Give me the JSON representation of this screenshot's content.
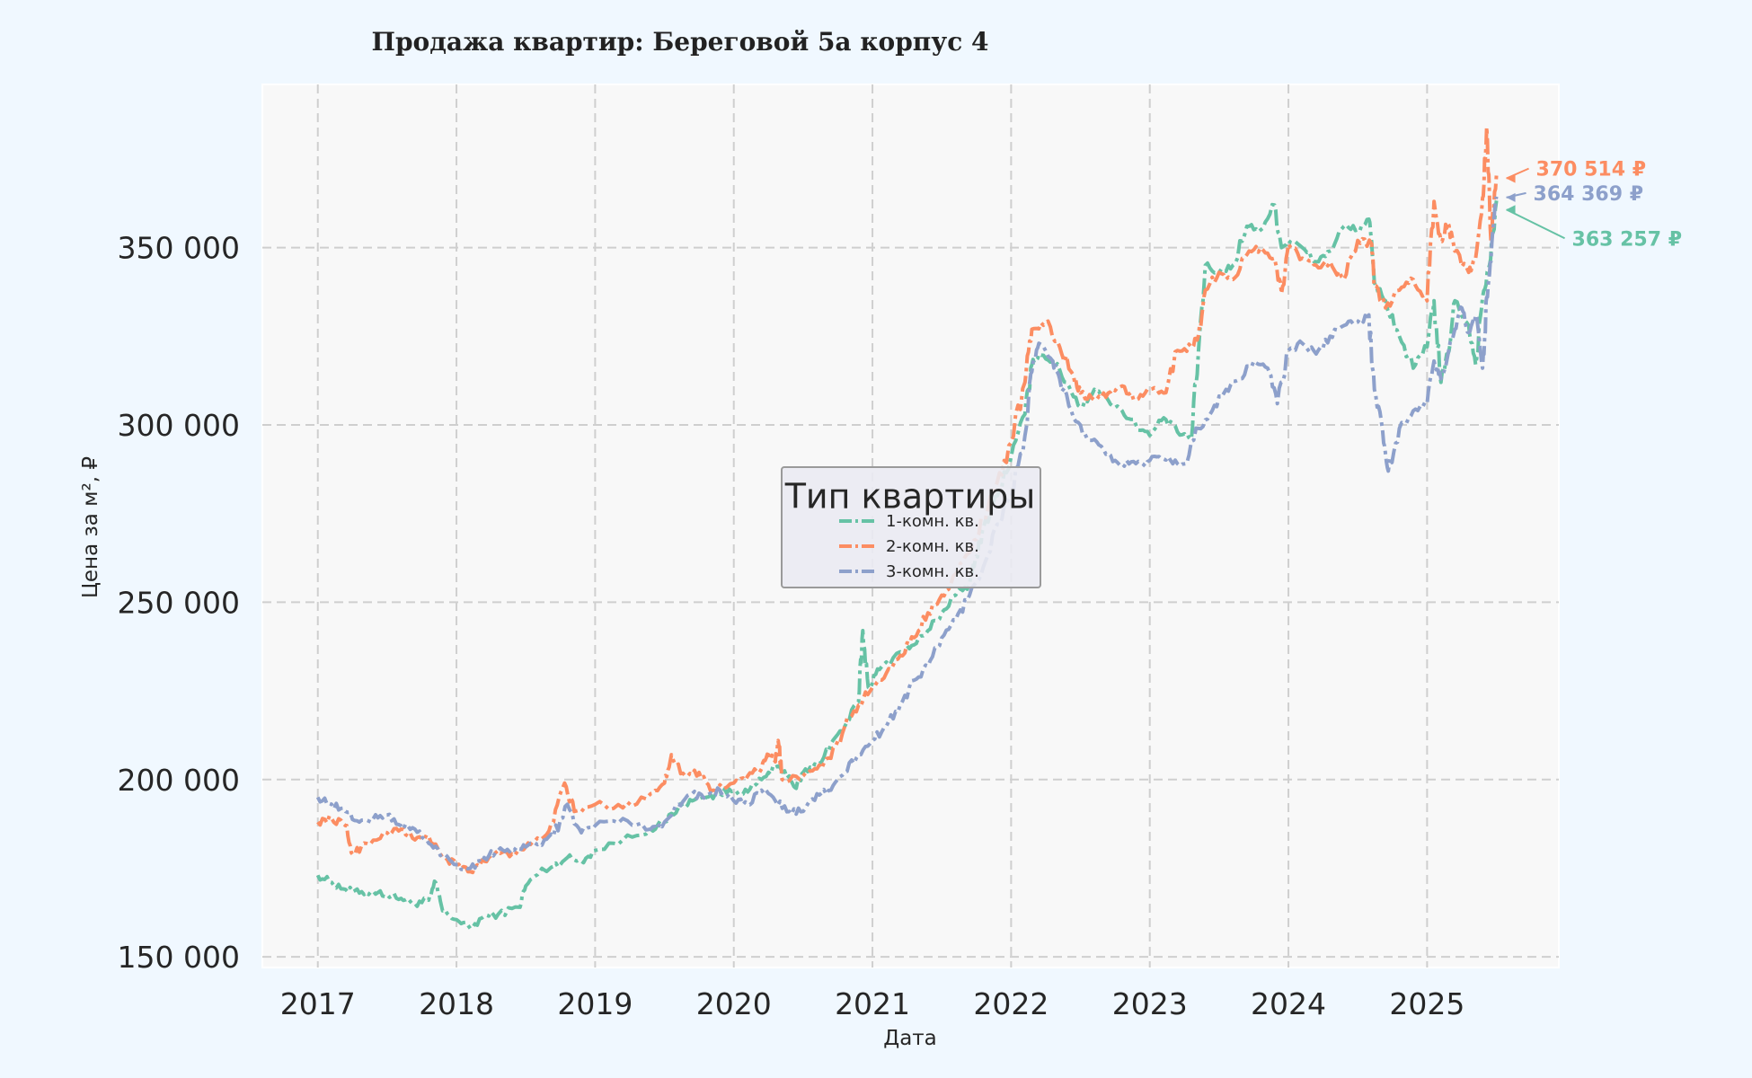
{
  "chart_data": {
    "type": "line",
    "title": "Продажа квартир: Береговой 5а корпус 4",
    "xlabel": "Дата",
    "ylabel": "Цена за м², ₽",
    "xlim": [
      2016.6,
      2025.95
    ],
    "ylim": [
      147000,
      396000
    ],
    "x_ticks": [
      2017,
      2018,
      2019,
      2020,
      2021,
      2022,
      2023,
      2024,
      2025
    ],
    "x_tick_labels": [
      "2017",
      "2018",
      "2019",
      "2020",
      "2021",
      "2022",
      "2023",
      "2024",
      "2025"
    ],
    "y_ticks": [
      150000,
      200000,
      250000,
      300000,
      350000
    ],
    "y_tick_labels": [
      "150 000",
      "200 000",
      "250 000",
      "300 000",
      "350 000"
    ],
    "grid": true,
    "legend": {
      "title": "Тип квартиры",
      "position": "center"
    },
    "series": [
      {
        "name": "1-комн. кв.",
        "color": "#66c2a5",
        "end_label": "363 257 ₽",
        "points": [
          [
            2017.0,
            173000
          ],
          [
            2017.1,
            171000
          ],
          [
            2017.2,
            169000
          ],
          [
            2017.3,
            168000
          ],
          [
            2017.4,
            168500
          ],
          [
            2017.5,
            167500
          ],
          [
            2017.6,
            166500
          ],
          [
            2017.7,
            165000
          ],
          [
            2017.8,
            166000
          ],
          [
            2017.85,
            171000
          ],
          [
            2017.9,
            163000
          ],
          [
            2018.0,
            160500
          ],
          [
            2018.1,
            158000
          ],
          [
            2018.2,
            161500
          ],
          [
            2018.3,
            162000
          ],
          [
            2018.45,
            164000
          ],
          [
            2018.5,
            170000
          ],
          [
            2018.6,
            174000
          ],
          [
            2018.7,
            175500
          ],
          [
            2018.8,
            178000
          ],
          [
            2018.9,
            177000
          ],
          [
            2019.0,
            180000
          ],
          [
            2019.2,
            183000
          ],
          [
            2019.4,
            186000
          ],
          [
            2019.5,
            188000
          ],
          [
            2019.6,
            192000
          ],
          [
            2019.7,
            194000
          ],
          [
            2019.8,
            195000
          ],
          [
            2019.9,
            196000
          ],
          [
            2020.0,
            197000
          ],
          [
            2020.1,
            196500
          ],
          [
            2020.2,
            200000
          ],
          [
            2020.3,
            203500
          ],
          [
            2020.4,
            201000
          ],
          [
            2020.45,
            197500
          ],
          [
            2020.5,
            202000
          ],
          [
            2020.6,
            204000
          ],
          [
            2020.7,
            210000
          ],
          [
            2020.8,
            215000
          ],
          [
            2020.9,
            222000
          ],
          [
            2020.93,
            242000
          ],
          [
            2020.97,
            226000
          ],
          [
            2021.05,
            231000
          ],
          [
            2021.2,
            236000
          ],
          [
            2021.3,
            238000
          ],
          [
            2021.4,
            242000
          ],
          [
            2021.5,
            247000
          ],
          [
            2021.6,
            252000
          ],
          [
            2021.7,
            255000
          ],
          [
            2021.75,
            263000
          ],
          [
            2021.8,
            271000
          ],
          [
            2021.9,
            280000
          ],
          [
            2022.0,
            291000
          ],
          [
            2022.1,
            303000
          ],
          [
            2022.15,
            317000
          ],
          [
            2022.2,
            320000
          ],
          [
            2022.3,
            318000
          ],
          [
            2022.4,
            312000
          ],
          [
            2022.5,
            305000
          ],
          [
            2022.6,
            310000
          ],
          [
            2022.7,
            307000
          ],
          [
            2022.8,
            304000
          ],
          [
            2022.9,
            300000
          ],
          [
            2023.0,
            297000
          ],
          [
            2023.1,
            302000
          ],
          [
            2023.2,
            298000
          ],
          [
            2023.3,
            296000
          ],
          [
            2023.35,
            320000
          ],
          [
            2023.4,
            345000
          ],
          [
            2023.5,
            343000
          ],
          [
            2023.6,
            345000
          ],
          [
            2023.7,
            356000
          ],
          [
            2023.8,
            355000
          ],
          [
            2023.9,
            362000
          ],
          [
            2023.95,
            350000
          ],
          [
            2024.0,
            352000
          ],
          [
            2024.1,
            350000
          ],
          [
            2024.2,
            346000
          ],
          [
            2024.3,
            349000
          ],
          [
            2024.4,
            356000
          ],
          [
            2024.5,
            355000
          ],
          [
            2024.58,
            358000
          ],
          [
            2024.62,
            340000
          ],
          [
            2024.7,
            335000
          ],
          [
            2024.8,
            325000
          ],
          [
            2024.9,
            316000
          ],
          [
            2025.0,
            322000
          ],
          [
            2025.05,
            335000
          ],
          [
            2025.1,
            312000
          ],
          [
            2025.15,
            320000
          ],
          [
            2025.2,
            335000
          ],
          [
            2025.3,
            328000
          ],
          [
            2025.35,
            317000
          ],
          [
            2025.4,
            336000
          ],
          [
            2025.45,
            345000
          ],
          [
            2025.5,
            363257
          ]
        ]
      },
      {
        "name": "2-комн. кв.",
        "color": "#fc8d62",
        "end_label": "370 514 ₽",
        "points": [
          [
            2017.0,
            188000
          ],
          [
            2017.1,
            189000
          ],
          [
            2017.2,
            187000
          ],
          [
            2017.25,
            179000
          ],
          [
            2017.35,
            182000
          ],
          [
            2017.5,
            185000
          ],
          [
            2017.6,
            186000
          ],
          [
            2017.7,
            183000
          ],
          [
            2017.8,
            184000
          ],
          [
            2017.9,
            178000
          ],
          [
            2018.0,
            176000
          ],
          [
            2018.1,
            174000
          ],
          [
            2018.2,
            177000
          ],
          [
            2018.3,
            180000
          ],
          [
            2018.4,
            179000
          ],
          [
            2018.5,
            181000
          ],
          [
            2018.6,
            183000
          ],
          [
            2018.7,
            188000
          ],
          [
            2018.78,
            199000
          ],
          [
            2018.85,
            191000
          ],
          [
            2019.0,
            193000
          ],
          [
            2019.2,
            192000
          ],
          [
            2019.4,
            196000
          ],
          [
            2019.5,
            199000
          ],
          [
            2019.55,
            207000
          ],
          [
            2019.65,
            201000
          ],
          [
            2019.75,
            202000
          ],
          [
            2019.85,
            197000
          ],
          [
            2020.0,
            199000
          ],
          [
            2020.1,
            201000
          ],
          [
            2020.2,
            203000
          ],
          [
            2020.25,
            207000
          ],
          [
            2020.3,
            205000
          ],
          [
            2020.32,
            211000
          ],
          [
            2020.35,
            200000
          ],
          [
            2020.5,
            201000
          ],
          [
            2020.6,
            203000
          ],
          [
            2020.7,
            206000
          ],
          [
            2020.8,
            215000
          ],
          [
            2020.9,
            221000
          ],
          [
            2021.0,
            226000
          ],
          [
            2021.1,
            230000
          ],
          [
            2021.2,
            235000
          ],
          [
            2021.3,
            240000
          ],
          [
            2021.4,
            247000
          ],
          [
            2021.5,
            252000
          ],
          [
            2021.6,
            258000
          ],
          [
            2021.7,
            264000
          ],
          [
            2021.8,
            274000
          ],
          [
            2021.9,
            284000
          ],
          [
            2022.0,
            295000
          ],
          [
            2022.1,
            312000
          ],
          [
            2022.15,
            327000
          ],
          [
            2022.25,
            329000
          ],
          [
            2022.35,
            322000
          ],
          [
            2022.45,
            314000
          ],
          [
            2022.5,
            309000
          ],
          [
            2022.6,
            307000
          ],
          [
            2022.7,
            309000
          ],
          [
            2022.8,
            311000
          ],
          [
            2022.9,
            307000
          ],
          [
            2023.0,
            310000
          ],
          [
            2023.1,
            309000
          ],
          [
            2023.2,
            321000
          ],
          [
            2023.3,
            322000
          ],
          [
            2023.35,
            325000
          ],
          [
            2023.4,
            338000
          ],
          [
            2023.5,
            343000
          ],
          [
            2023.6,
            341000
          ],
          [
            2023.7,
            348000
          ],
          [
            2023.8,
            350000
          ],
          [
            2023.9,
            347000
          ],
          [
            2023.95,
            337000
          ],
          [
            2024.0,
            351000
          ],
          [
            2024.1,
            347000
          ],
          [
            2024.2,
            345000
          ],
          [
            2024.3,
            346000
          ],
          [
            2024.4,
            341000
          ],
          [
            2024.5,
            352000
          ],
          [
            2024.6,
            351000
          ],
          [
            2024.62,
            339000
          ],
          [
            2024.7,
            333000
          ],
          [
            2024.8,
            338000
          ],
          [
            2024.9,
            341000
          ],
          [
            2025.0,
            335000
          ],
          [
            2025.05,
            363000
          ],
          [
            2025.1,
            352000
          ],
          [
            2025.15,
            357000
          ],
          [
            2025.2,
            349000
          ],
          [
            2025.3,
            343000
          ],
          [
            2025.35,
            347000
          ],
          [
            2025.4,
            364000
          ],
          [
            2025.43,
            384000
          ],
          [
            2025.46,
            352000
          ],
          [
            2025.5,
            370514
          ]
        ]
      },
      {
        "name": "3-комн. кв.",
        "color": "#8da0cb",
        "end_label": "364 369 ₽",
        "points": [
          [
            2017.0,
            195000
          ],
          [
            2017.1,
            193000
          ],
          [
            2017.2,
            191000
          ],
          [
            2017.3,
            188000
          ],
          [
            2017.4,
            189000
          ],
          [
            2017.5,
            190000
          ],
          [
            2017.6,
            187000
          ],
          [
            2017.7,
            186000
          ],
          [
            2017.8,
            182000
          ],
          [
            2017.9,
            179000
          ],
          [
            2018.0,
            176000
          ],
          [
            2018.1,
            175000
          ],
          [
            2018.2,
            178000
          ],
          [
            2018.3,
            180000
          ],
          [
            2018.4,
            180500
          ],
          [
            2018.5,
            181000
          ],
          [
            2018.6,
            182000
          ],
          [
            2018.7,
            184000
          ],
          [
            2018.8,
            193000
          ],
          [
            2018.9,
            185000
          ],
          [
            2019.0,
            187000
          ],
          [
            2019.2,
            189000
          ],
          [
            2019.4,
            186000
          ],
          [
            2019.5,
            188000
          ],
          [
            2019.6,
            193000
          ],
          [
            2019.7,
            196000
          ],
          [
            2019.8,
            195000
          ],
          [
            2019.9,
            197000
          ],
          [
            2020.0,
            194000
          ],
          [
            2020.1,
            193000
          ],
          [
            2020.2,
            197000
          ],
          [
            2020.3,
            194000
          ],
          [
            2020.4,
            191000
          ],
          [
            2020.5,
            191000
          ],
          [
            2020.6,
            196000
          ],
          [
            2020.7,
            197000
          ],
          [
            2020.8,
            202000
          ],
          [
            2020.9,
            207000
          ],
          [
            2021.0,
            211000
          ],
          [
            2021.1,
            215000
          ],
          [
            2021.2,
            221000
          ],
          [
            2021.3,
            228000
          ],
          [
            2021.4,
            232000
          ],
          [
            2021.5,
            240000
          ],
          [
            2021.6,
            245000
          ],
          [
            2021.7,
            252000
          ],
          [
            2021.8,
            260000
          ],
          [
            2021.9,
            272000
          ],
          [
            2022.0,
            280000
          ],
          [
            2022.1,
            297000
          ],
          [
            2022.15,
            315000
          ],
          [
            2022.2,
            323000
          ],
          [
            2022.3,
            318000
          ],
          [
            2022.35,
            313000
          ],
          [
            2022.45,
            302000
          ],
          [
            2022.55,
            296000
          ],
          [
            2022.65,
            294000
          ],
          [
            2022.75,
            290000
          ],
          [
            2022.85,
            289000
          ],
          [
            2022.95,
            289000
          ],
          [
            2023.05,
            291000
          ],
          [
            2023.15,
            290000
          ],
          [
            2023.25,
            289000
          ],
          [
            2023.35,
            299000
          ],
          [
            2023.45,
            304000
          ],
          [
            2023.55,
            310000
          ],
          [
            2023.65,
            313000
          ],
          [
            2023.75,
            318000
          ],
          [
            2023.85,
            316000
          ],
          [
            2023.92,
            306000
          ],
          [
            2024.0,
            321000
          ],
          [
            2024.1,
            323000
          ],
          [
            2024.2,
            320000
          ],
          [
            2024.3,
            325000
          ],
          [
            2024.4,
            328000
          ],
          [
            2024.5,
            329000
          ],
          [
            2024.58,
            331000
          ],
          [
            2024.62,
            310000
          ],
          [
            2024.68,
            298000
          ],
          [
            2024.72,
            287000
          ],
          [
            2024.8,
            299000
          ],
          [
            2024.9,
            304000
          ],
          [
            2025.0,
            306000
          ],
          [
            2025.05,
            318000
          ],
          [
            2025.1,
            313000
          ],
          [
            2025.2,
            327000
          ],
          [
            2025.25,
            333000
          ],
          [
            2025.3,
            326000
          ],
          [
            2025.35,
            331000
          ],
          [
            2025.4,
            316000
          ],
          [
            2025.43,
            336000
          ],
          [
            2025.46,
            346000
          ],
          [
            2025.5,
            364369
          ]
        ]
      }
    ]
  }
}
